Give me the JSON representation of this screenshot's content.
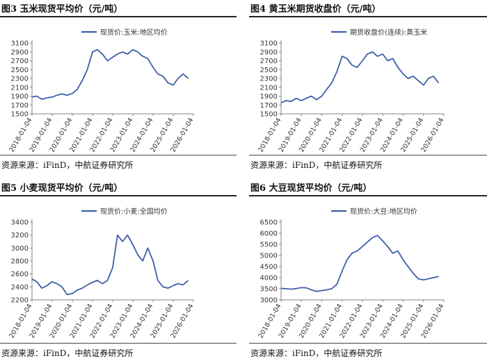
{
  "colors": {
    "line": "#3b5ea8",
    "axis": "#808080",
    "title_rule": "#222222"
  },
  "panels": [
    {
      "title": "图3  玉米现货平均价（元/吨）",
      "source": "资源来源：iFinD，中航证券研究所",
      "chart_data": {
        "type": "line",
        "series": [
          {
            "name": "现货价:玉米:地区均价",
            "x": [
              "2018-01-04",
              "2018-04-01",
              "2018-07-01",
              "2018-10-01",
              "2019-01-04",
              "2019-04-01",
              "2019-07-01",
              "2019-10-01",
              "2020-01-04",
              "2020-04-01",
              "2020-07-01",
              "2020-10-01",
              "2021-01-04",
              "2021-04-01",
              "2021-07-01",
              "2021-10-01",
              "2022-01-04",
              "2022-04-01",
              "2022-07-01",
              "2022-10-01",
              "2023-01-04",
              "2023-04-01",
              "2023-07-01",
              "2023-10-01",
              "2024-01-04",
              "2024-04-01",
              "2024-07-01",
              "2024-10-01",
              "2025-01-04",
              "2025-04-01",
              "2025-07-01",
              "2025-10-01"
            ],
            "values": [
              1880,
              1900,
              1830,
              1860,
              1880,
              1920,
              1950,
              1920,
              1960,
              2050,
              2250,
              2500,
              2900,
              2950,
              2850,
              2700,
              2780,
              2850,
              2900,
              2850,
              2950,
              2900,
              2800,
              2750,
              2550,
              2400,
              2350,
              2200,
              2150,
              2300,
              2400,
              2300
            ]
          }
        ],
        "xticks": [
          "2018-01-04",
          "2019-01-04",
          "2020-01-04",
          "2021-01-04",
          "2022-01-04",
          "2023-01-04",
          "2024-01-04",
          "2025-01-04",
          "2026-01-04"
        ],
        "yticks": [
          1500,
          1700,
          1900,
          2100,
          2300,
          2500,
          2700,
          2900,
          3100
        ],
        "ylim": [
          1500,
          3100
        ],
        "legend": "top"
      }
    },
    {
      "title": "图4  黄玉米期货收盘价（元/吨）",
      "source": "资源来源：iFinD，中航证券研究所",
      "chart_data": {
        "type": "line",
        "series": [
          {
            "name": "期货收盘价(连续):黄玉米",
            "x": [
              "2018-01-04",
              "2018-04-01",
              "2018-07-01",
              "2018-10-01",
              "2019-01-04",
              "2019-04-01",
              "2019-07-01",
              "2019-10-01",
              "2020-01-04",
              "2020-04-01",
              "2020-07-01",
              "2020-10-01",
              "2021-01-04",
              "2021-04-01",
              "2021-07-01",
              "2021-10-01",
              "2022-01-04",
              "2022-04-01",
              "2022-07-01",
              "2022-10-01",
              "2023-01-04",
              "2023-04-01",
              "2023-07-01",
              "2023-10-01",
              "2024-01-04",
              "2024-04-01",
              "2024-07-01",
              "2024-10-01",
              "2025-01-04",
              "2025-04-01",
              "2025-07-01",
              "2025-10-01"
            ],
            "values": [
              1750,
              1800,
              1780,
              1850,
              1800,
              1850,
              1900,
              1820,
              1900,
              2050,
              2200,
              2450,
              2800,
              2750,
              2600,
              2550,
              2700,
              2850,
              2900,
              2800,
              2850,
              2700,
              2750,
              2550,
              2400,
              2300,
              2350,
              2250,
              2150,
              2300,
              2350,
              2200
            ]
          }
        ],
        "xticks": [
          "2018-01-04",
          "2019-01-04",
          "2020-01-04",
          "2021-01-04",
          "2022-01-04",
          "2023-01-04",
          "2024-01-04",
          "2025-01-04",
          "2026-01-04"
        ],
        "yticks": [
          1500,
          1700,
          1900,
          2100,
          2300,
          2500,
          2700,
          2900,
          3100
        ],
        "ylim": [
          1500,
          3100
        ],
        "legend": "top"
      }
    },
    {
      "title": "图5  小麦现货平均价（元/吨）",
      "source": "资源来源：iFinD，中航证券研究所",
      "chart_data": {
        "type": "line",
        "series": [
          {
            "name": "现货价:小麦:全国均价",
            "x": [
              "2018-01-04",
              "2018-04-01",
              "2018-07-01",
              "2018-10-01",
              "2019-01-04",
              "2019-04-01",
              "2019-07-01",
              "2019-10-01",
              "2020-01-04",
              "2020-04-01",
              "2020-07-01",
              "2020-10-01",
              "2021-01-04",
              "2021-04-01",
              "2021-07-01",
              "2021-10-01",
              "2022-01-04",
              "2022-04-01",
              "2022-07-01",
              "2022-10-01",
              "2023-01-04",
              "2023-04-01",
              "2023-07-01",
              "2023-10-01",
              "2024-01-04",
              "2024-04-01",
              "2024-07-01",
              "2024-10-01",
              "2025-01-04",
              "2025-04-01",
              "2025-07-01",
              "2025-10-01"
            ],
            "values": [
              2520,
              2480,
              2380,
              2420,
              2480,
              2450,
              2400,
              2280,
              2300,
              2350,
              2380,
              2430,
              2470,
              2500,
              2450,
              2500,
              2700,
              3200,
              3100,
              3200,
              3050,
              2900,
              2800,
              3000,
              2800,
              2500,
              2400,
              2380,
              2420,
              2450,
              2430,
              2500
            ]
          }
        ],
        "xticks": [
          "2018-01-04",
          "2019-01-04",
          "2020-01-04",
          "2021-01-04",
          "2022-01-04",
          "2023-01-04",
          "2024-01-04",
          "2025-01-04",
          "2026-01-04"
        ],
        "yticks": [
          2200,
          2400,
          2600,
          2800,
          3000,
          3200,
          3400
        ],
        "ylim": [
          2200,
          3400
        ],
        "legend": "top"
      }
    },
    {
      "title": "图6  大豆现货平均价（元/吨）",
      "source": "资源来源：iFinD，中航证券研究所",
      "chart_data": {
        "type": "line",
        "series": [
          {
            "name": "现货价:大豆:地区均价",
            "x": [
              "2018-01-04",
              "2018-04-01",
              "2018-07-01",
              "2018-10-01",
              "2019-01-04",
              "2019-04-01",
              "2019-07-01",
              "2019-10-01",
              "2020-01-04",
              "2020-04-01",
              "2020-07-01",
              "2020-10-01",
              "2021-01-04",
              "2021-04-01",
              "2021-07-01",
              "2021-10-01",
              "2022-01-04",
              "2022-04-01",
              "2022-07-01",
              "2022-10-01",
              "2023-01-04",
              "2023-04-01",
              "2023-07-01",
              "2023-10-01",
              "2024-01-04",
              "2024-04-01",
              "2024-07-01",
              "2024-10-01",
              "2025-01-04",
              "2025-04-01",
              "2025-07-01",
              "2025-10-01"
            ],
            "values": [
              3520,
              3500,
              3480,
              3510,
              3550,
              3540,
              3450,
              3380,
              3420,
              3450,
              3500,
              3700,
              4300,
              4800,
              5100,
              5200,
              5400,
              5600,
              5800,
              5900,
              5650,
              5400,
              5100,
              5200,
              4800,
              4500,
              4200,
              3950,
              3900,
              3950,
              4000,
              4050
            ]
          }
        ],
        "xticks": [
          "2018-01-04",
          "2019-01-04",
          "2020-01-04",
          "2021-01-04",
          "2022-01-04",
          "2023-01-04",
          "2024-01-04",
          "2025-01-04",
          "2026-01-04"
        ],
        "yticks": [
          3000,
          3500,
          4000,
          4500,
          5000,
          5500,
          6000,
          6500
        ],
        "ylim": [
          3000,
          6500
        ],
        "legend": "top"
      }
    }
  ]
}
